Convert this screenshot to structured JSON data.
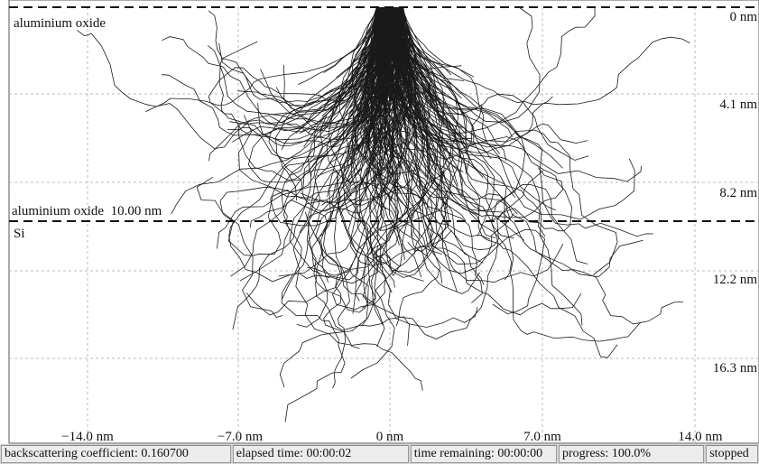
{
  "top_layer_label": "aluminium oxide",
  "boundary_label": "aluminium oxide  10.00 nm",
  "bottom_layer_label": "Si",
  "depth_labels": [
    "0 nm",
    "4.1 nm",
    "8.2 nm",
    "12.2 nm",
    "16.3 nm"
  ],
  "lateral_labels": [
    "−14.0 nm",
    "−7.0 nm",
    "0 nm",
    "7.0 nm",
    "14.0 nm"
  ],
  "status_bar": [
    "backscattering coefficient: 0.160700",
    "elapsed time: 00:00:02",
    "time remaining: 00:00:00",
    "progress: 100.0%",
    "stopped"
  ]
}
